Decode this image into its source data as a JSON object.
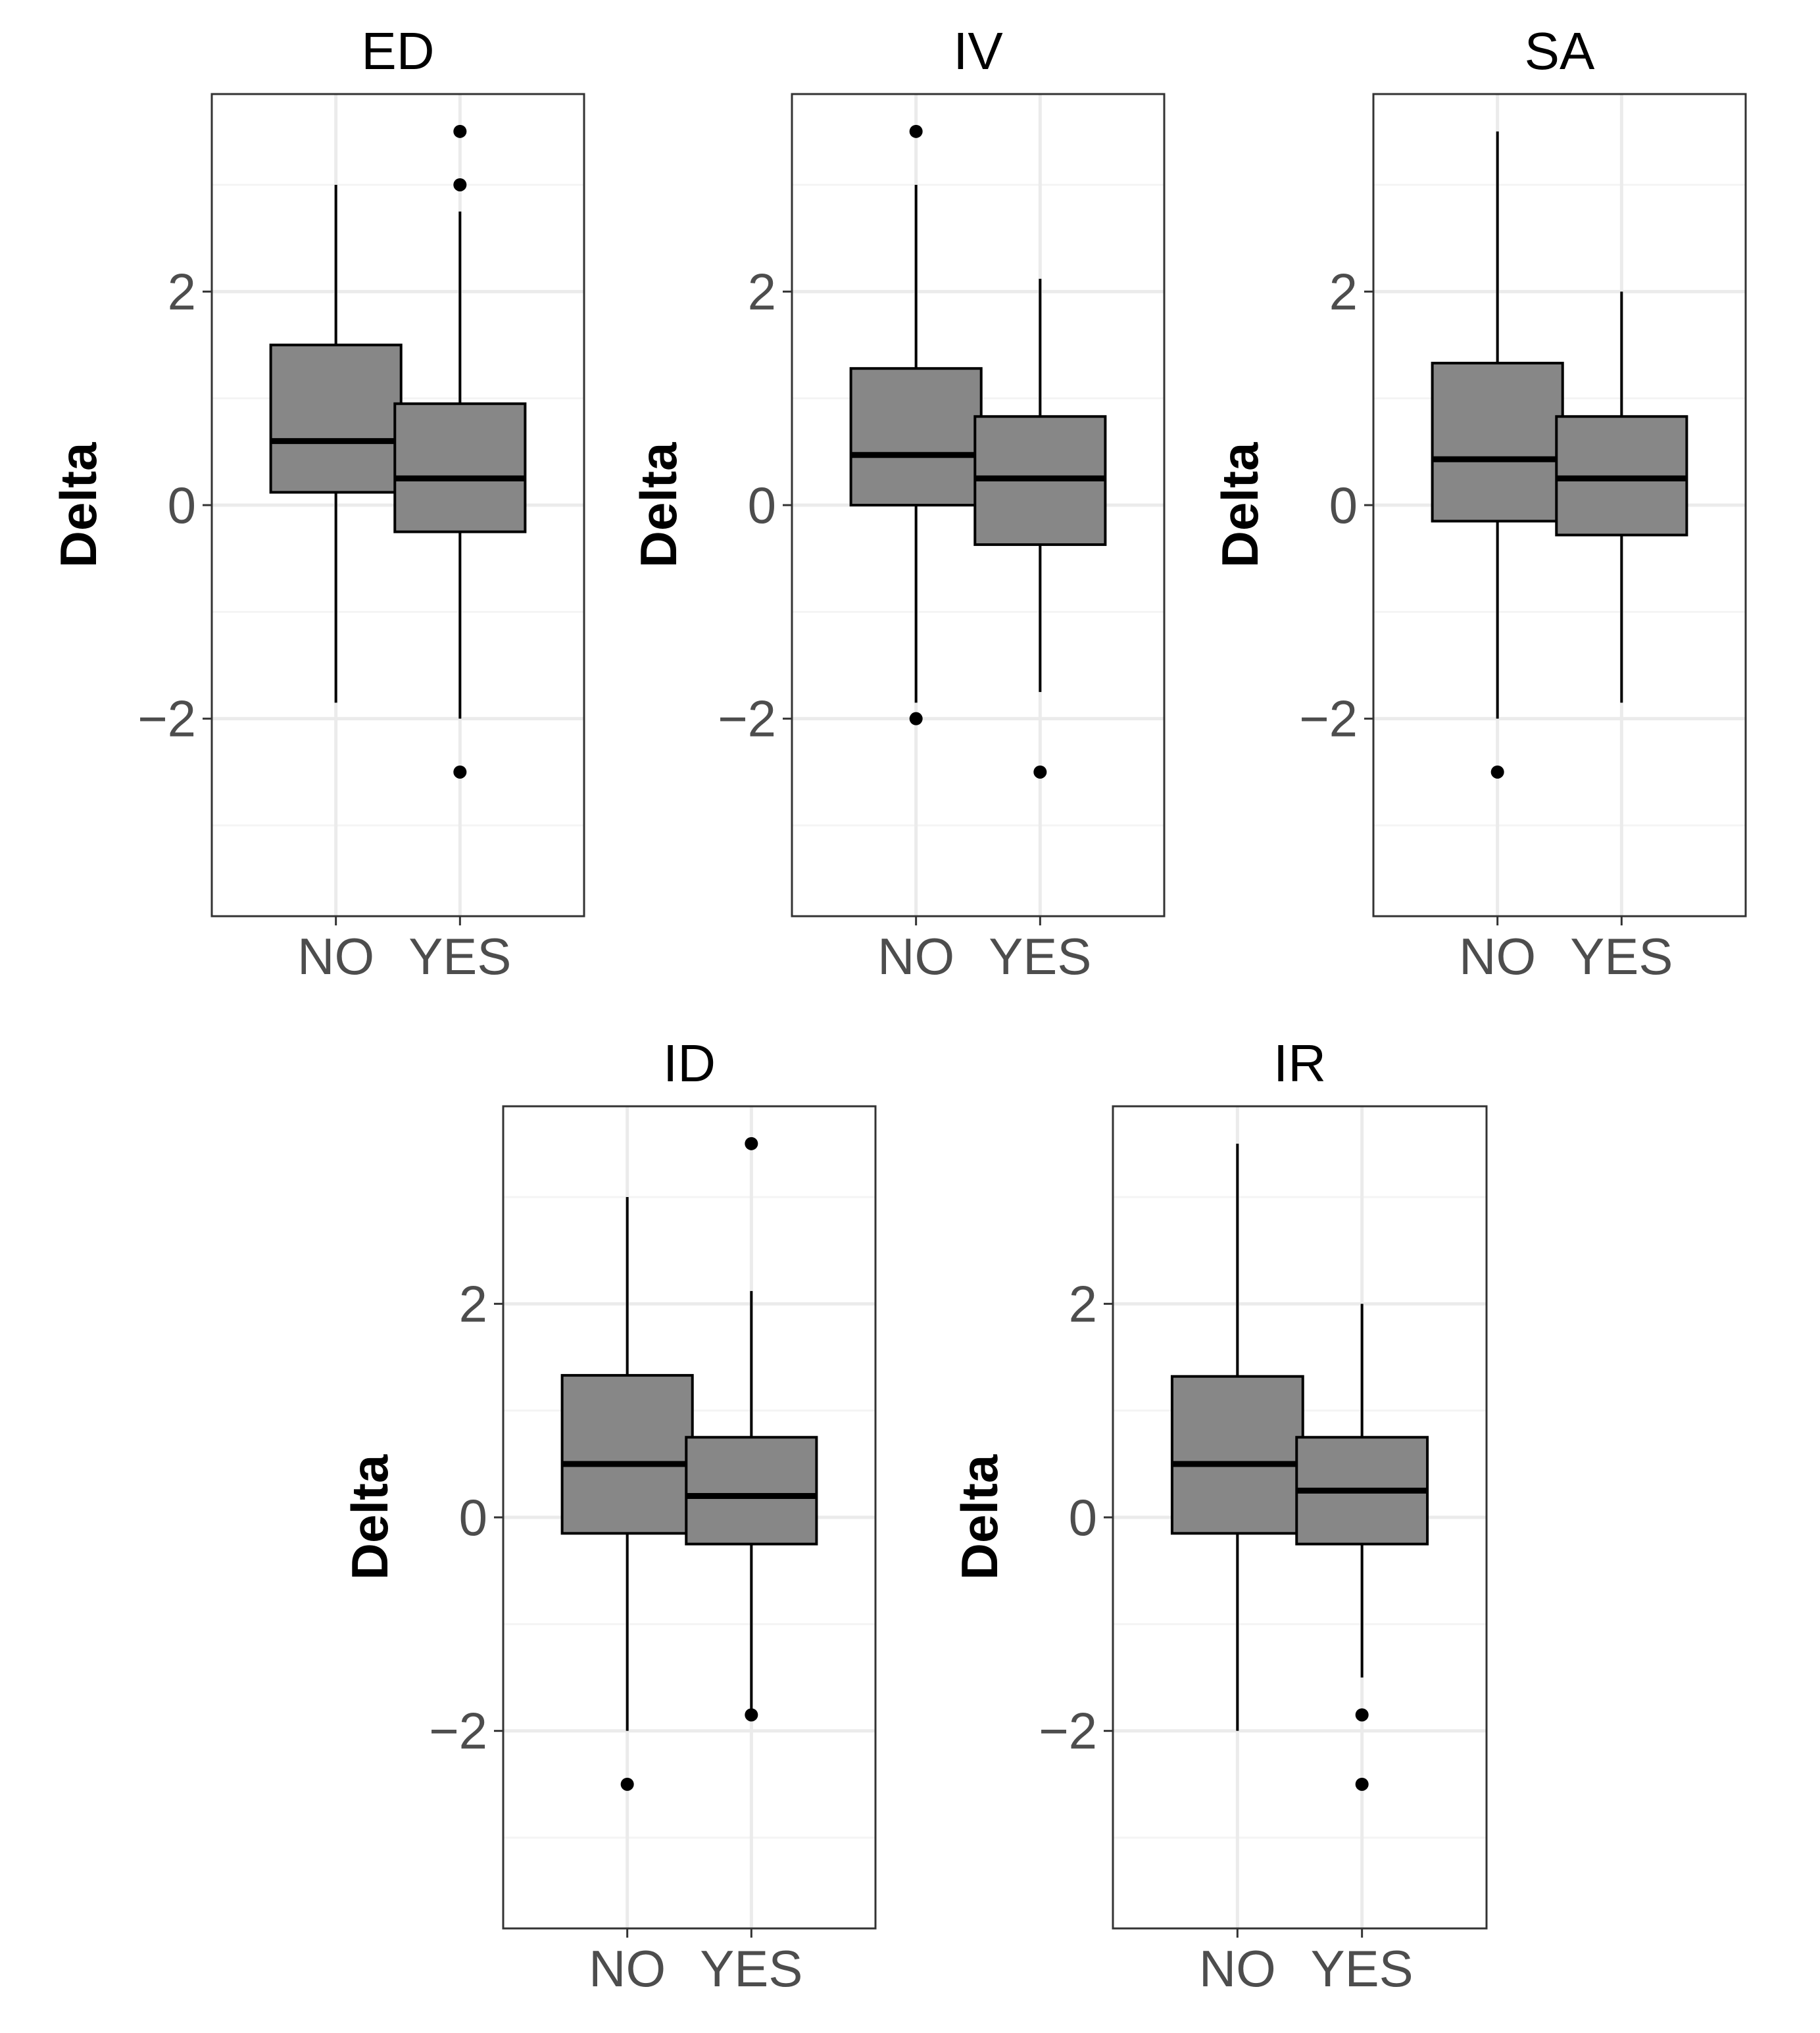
{
  "chart_data": [
    {
      "type": "boxplot",
      "title": "ED",
      "categories": [
        "NO",
        "YES"
      ],
      "ylabel": "Delta",
      "ylim": [
        -3.85,
        3.85
      ],
      "yticks": [
        -2,
        0,
        2
      ],
      "tick_labels": [
        "−2",
        "0",
        "2"
      ],
      "grid": true,
      "boxes": [
        {
          "category": "NO",
          "whisker_low": -1.85,
          "q1": 0.12,
          "median": 0.6,
          "q3": 1.5,
          "whisker_high": 3.0,
          "outliers": []
        },
        {
          "category": "YES",
          "whisker_low": -2.0,
          "q1": -0.25,
          "median": 0.25,
          "q3": 0.95,
          "whisker_high": 2.75,
          "outliers": [
            3.5,
            3.0,
            -2.5
          ]
        }
      ]
    },
    {
      "type": "boxplot",
      "title": "IV",
      "categories": [
        "NO",
        "YES"
      ],
      "ylabel": "Delta",
      "ylim": [
        -3.85,
        3.85
      ],
      "yticks": [
        -2,
        0,
        2
      ],
      "tick_labels": [
        "−2",
        "0",
        "2"
      ],
      "grid": true,
      "boxes": [
        {
          "category": "NO",
          "whisker_low": -1.85,
          "q1": 0.0,
          "median": 0.47,
          "q3": 1.28,
          "whisker_high": 3.0,
          "outliers": [
            3.5,
            -2.0
          ]
        },
        {
          "category": "YES",
          "whisker_low": -1.75,
          "q1": -0.37,
          "median": 0.25,
          "q3": 0.83,
          "whisker_high": 2.12,
          "outliers": [
            -2.5
          ]
        }
      ]
    },
    {
      "type": "boxplot",
      "title": "SA",
      "categories": [
        "NO",
        "YES"
      ],
      "ylabel": "Delta",
      "ylim": [
        -3.85,
        3.85
      ],
      "yticks": [
        -2,
        0,
        2
      ],
      "tick_labels": [
        "−2",
        "0",
        "2"
      ],
      "grid": true,
      "boxes": [
        {
          "category": "NO",
          "whisker_low": -2.0,
          "q1": -0.15,
          "median": 0.43,
          "q3": 1.33,
          "whisker_high": 3.5,
          "outliers": [
            -2.5
          ]
        },
        {
          "category": "YES",
          "whisker_low": -1.85,
          "q1": -0.28,
          "median": 0.25,
          "q3": 0.83,
          "whisker_high": 2.0,
          "outliers": []
        }
      ]
    },
    {
      "type": "boxplot",
      "title": "ID",
      "categories": [
        "NO",
        "YES"
      ],
      "ylabel": "Delta",
      "ylim": [
        -3.85,
        3.85
      ],
      "yticks": [
        -2,
        0,
        2
      ],
      "tick_labels": [
        "−2",
        "0",
        "2"
      ],
      "grid": true,
      "boxes": [
        {
          "category": "NO",
          "whisker_low": -2.0,
          "q1": -0.15,
          "median": 0.5,
          "q3": 1.33,
          "whisker_high": 3.0,
          "outliers": [
            -2.5
          ]
        },
        {
          "category": "YES",
          "whisker_low": -1.85,
          "q1": -0.25,
          "median": 0.2,
          "q3": 0.75,
          "whisker_high": 2.12,
          "outliers": [
            3.5,
            -1.85
          ]
        }
      ]
    },
    {
      "type": "boxplot",
      "title": "IR",
      "categories": [
        "NO",
        "YES"
      ],
      "ylabel": "Delta",
      "ylim": [
        -3.85,
        3.85
      ],
      "yticks": [
        -2,
        0,
        2
      ],
      "tick_labels": [
        "−2",
        "0",
        "2"
      ],
      "grid": true,
      "boxes": [
        {
          "category": "NO",
          "whisker_low": -2.0,
          "q1": -0.15,
          "median": 0.5,
          "q3": 1.32,
          "whisker_high": 3.5,
          "outliers": []
        },
        {
          "category": "YES",
          "whisker_low": -1.5,
          "q1": -0.25,
          "median": 0.25,
          "q3": 0.75,
          "whisker_high": 2.0,
          "outliers": [
            -1.85,
            -2.5
          ]
        }
      ]
    }
  ],
  "colors": {
    "box_fill": "#878787",
    "box_stroke": "#000000",
    "grid_major": "#ebebeb",
    "grid_minor": "#f4f4f4",
    "panel_border": "#333333",
    "tick_label": "#4d4d4d"
  }
}
